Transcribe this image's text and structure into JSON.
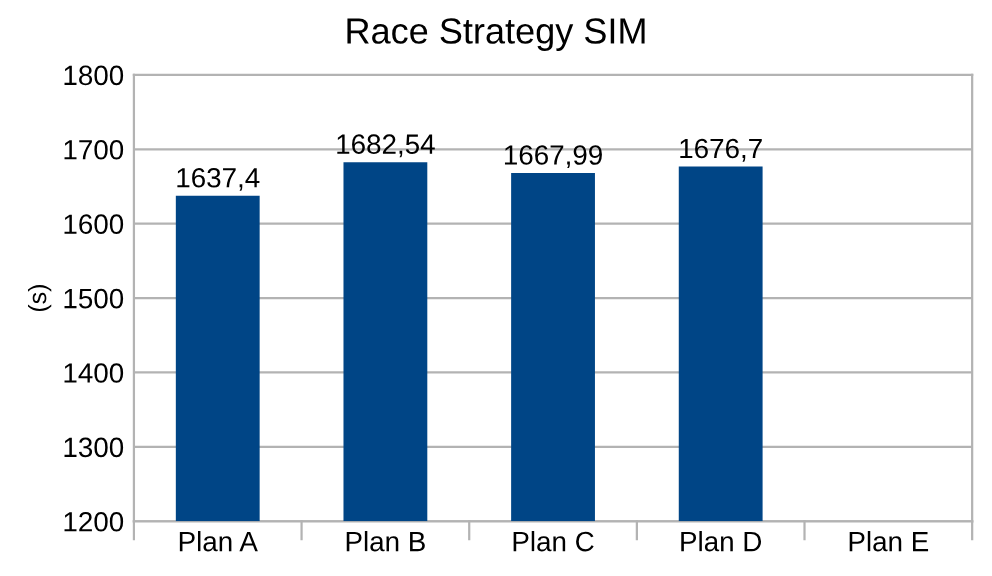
{
  "chart_data": {
    "type": "bar",
    "title": "Race Strategy SIM",
    "ylabel": "(s)",
    "categories": [
      "Plan A",
      "Plan B",
      "Plan C",
      "Plan D",
      "Plan E"
    ],
    "values": [
      1637.4,
      1682.54,
      1667.99,
      1676.7,
      null
    ],
    "value_labels": [
      "1637,4",
      "1682,54",
      "1667,99",
      "1676,7",
      null
    ],
    "color": "#004586",
    "ylim": [
      1200,
      1800
    ],
    "yticks": [
      1200,
      1300,
      1400,
      1500,
      1600,
      1700,
      1800
    ],
    "grid": "y",
    "legend": false
  }
}
